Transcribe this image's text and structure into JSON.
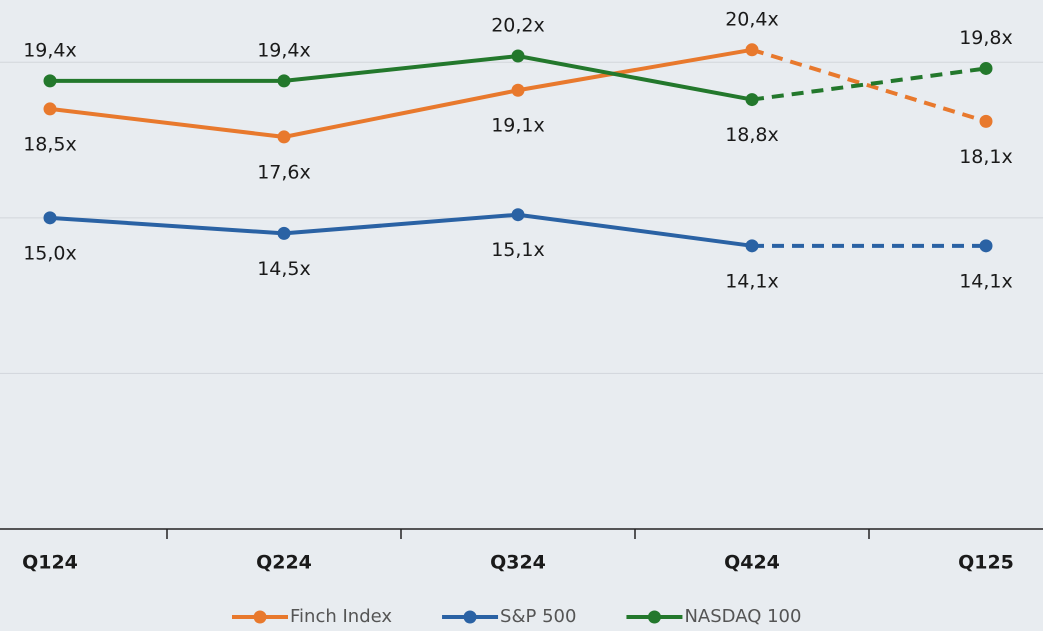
{
  "chart_data": {
    "type": "line",
    "categories": [
      "Q124",
      "Q224",
      "Q324",
      "Q424",
      "Q125"
    ],
    "series": [
      {
        "name": "Finch Index",
        "color": "#e8792d",
        "values": [
          18.5,
          17.6,
          19.1,
          20.4,
          18.1
        ],
        "value_labels": [
          "18,5x",
          "17,6x",
          "19,1x",
          "20,4x",
          "18,1x"
        ]
      },
      {
        "name": "S&P 500",
        "color": "#2a62a4",
        "values": [
          15.0,
          14.5,
          15.1,
          14.1,
          14.1
        ],
        "value_labels": [
          "15,0x",
          "14,5x",
          "15,1x",
          "14,1x",
          "14,1x"
        ]
      },
      {
        "name": "NASDAQ 100",
        "color": "#23782c",
        "values": [
          19.4,
          19.4,
          20.2,
          18.8,
          19.8
        ],
        "value_labels": [
          "19,4x",
          "19,4x",
          "20,2x",
          "18,8x",
          "19,8x"
        ]
      }
    ],
    "dashed_from_index": 3,
    "ylim": [
      5,
      22
    ],
    "yticks": [
      5,
      10,
      15,
      20
    ],
    "show_tick_labels": false,
    "grid": true,
    "legend": "bottom"
  }
}
